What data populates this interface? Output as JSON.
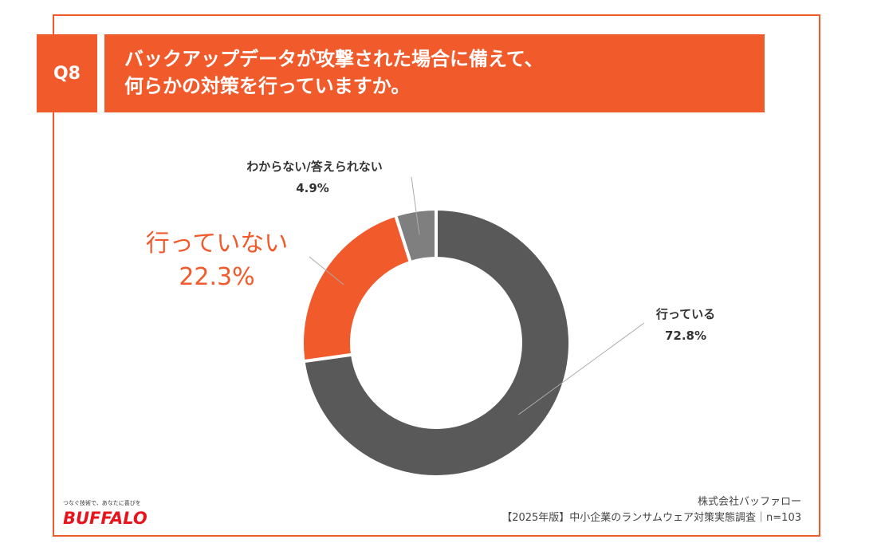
{
  "header": {
    "question_no": "Q8",
    "title_line1": "バックアップデータが攻撃された場合に備えて、",
    "title_line2": "何らかの対策を行っていますか。"
  },
  "chart_data": {
    "type": "pie",
    "style": "donut",
    "slices": [
      {
        "label": "行っている",
        "value": 72.8,
        "value_label": "72.8%",
        "color": "#595959"
      },
      {
        "label": "行っていない",
        "value": 22.3,
        "value_label": "22.3%",
        "color": "#f15a2b"
      },
      {
        "label": "わからない/答えられない",
        "value": 4.9,
        "value_label": "4.9%",
        "color": "#7f7f7f"
      }
    ]
  },
  "footer": {
    "company": "株式会社バッファロー",
    "survey": "【2025年版】中小企業のランサムウェア対策実態調査｜n=103"
  },
  "logo": {
    "tagline": "つなぐ技術で、あなたに喜びを",
    "brand": "BUFFALO"
  }
}
